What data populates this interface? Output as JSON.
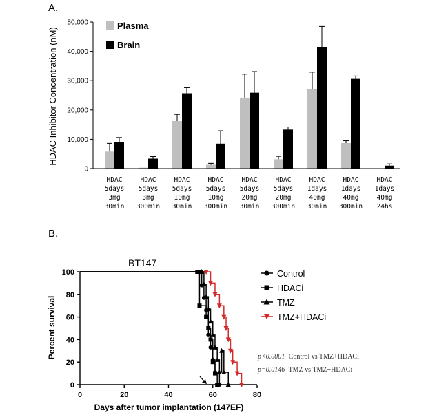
{
  "colors": {
    "plasma": "#bfbfbf",
    "brain": "#000000",
    "control": "#000000",
    "hdaci": "#000000",
    "tmz": "#000000",
    "tmz_hdaci": "#d42a2a"
  },
  "chart_data": [
    {
      "type": "bar",
      "panel_label": "A.",
      "title": "",
      "xlabel": "",
      "ylabel": "HDAC Inhibitor Concentration (nM)",
      "ylim": [
        0,
        50000
      ],
      "yticks": [
        "0",
        "10,000",
        "20,000",
        "30,000",
        "40,000",
        "50,000"
      ],
      "ytick_values": [
        0,
        10000,
        20000,
        30000,
        40000,
        50000
      ],
      "legend_position": "top-left",
      "categories": [
        [
          "HDAC",
          "5days",
          "3mg",
          "30min"
        ],
        [
          "HDAC",
          "5days",
          "3mg",
          "300min"
        ],
        [
          "HDAC",
          "5days",
          "10mg",
          "30min"
        ],
        [
          "HDAC",
          "5days",
          "10mg",
          "300min"
        ],
        [
          "HDAC",
          "5days",
          "20mg",
          "30min"
        ],
        [
          "HDAC",
          "5days",
          "20mg",
          "300min"
        ],
        [
          "HDAC",
          "1days",
          "40mg",
          "30min"
        ],
        [
          "HDAC",
          "1days",
          "40mg",
          "300min"
        ],
        [
          "HDAC",
          "1days",
          "40mg",
          "24hs"
        ]
      ],
      "series": [
        {
          "name": "Plasma",
          "values": [
            5800,
            300,
            16200,
            1300,
            24200,
            3200,
            27000,
            8700,
            100
          ],
          "errors": [
            2800,
            0,
            2300,
            500,
            8000,
            1000,
            5900,
            800,
            0
          ]
        },
        {
          "name": "Brain",
          "values": [
            9100,
            3400,
            25700,
            8500,
            25900,
            13300,
            41500,
            30600,
            1000
          ],
          "errors": [
            1500,
            700,
            1900,
            4400,
            7200,
            900,
            7000,
            1000,
            600
          ]
        }
      ]
    },
    {
      "type": "line",
      "subtype": "kaplan-meier",
      "panel_label": "B.",
      "inset_title": "BT147",
      "xlabel": "Days after tumor implantation (147EF)",
      "ylabel": "Percent survival",
      "xlim": [
        0,
        80
      ],
      "ylim": [
        0,
        100
      ],
      "xticks": [
        0,
        20,
        40,
        60,
        80
      ],
      "yticks": [
        0,
        20,
        40,
        60,
        80,
        100
      ],
      "legend_position": "right",
      "series": [
        {
          "name": "Control",
          "marker": "circle",
          "x": [
            0,
            54,
            55,
            56,
            57,
            58,
            59,
            60,
            61,
            63
          ],
          "y": [
            100,
            100,
            88,
            77,
            66,
            44,
            33,
            22,
            11,
            0
          ]
        },
        {
          "name": "HDACi",
          "marker": "square",
          "x": [
            0,
            53,
            54,
            57,
            58,
            59,
            60,
            61,
            62
          ],
          "y": [
            100,
            100,
            70,
            60,
            50,
            40,
            20,
            10,
            0
          ]
        },
        {
          "name": "TMZ",
          "marker": "triangle-up",
          "x": [
            0,
            55,
            56,
            57,
            58,
            59,
            60,
            61,
            62,
            63,
            64,
            65,
            67
          ],
          "y": [
            100,
            100,
            89,
            78,
            67,
            56,
            44,
            33,
            22,
            11,
            30,
            11,
            0
          ]
        },
        {
          "name": "TMZ+HDACi",
          "marker": "triangle-down",
          "x": [
            0,
            57,
            59,
            61,
            63,
            65,
            66,
            67,
            68,
            69,
            71,
            73
          ],
          "y": [
            100,
            100,
            90,
            80,
            70,
            60,
            50,
            40,
            30,
            20,
            10,
            0
          ]
        }
      ],
      "annotations": [
        {
          "stat": "p<0.0001",
          "text": "Control vs TMZ+HDACi"
        },
        {
          "stat": "p=0.0146",
          "text": "TMZ vs TMZ+HDACi"
        }
      ]
    }
  ]
}
